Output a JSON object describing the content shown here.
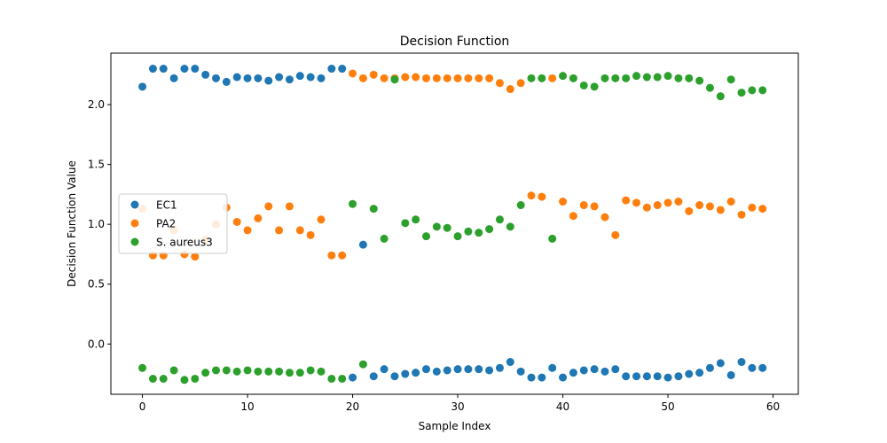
{
  "chart_data": {
    "type": "scatter",
    "title": "Decision Function",
    "xlabel": "Sample Index",
    "ylabel": "Decision Function Value",
    "xlim": [
      -3,
      62.4
    ],
    "ylim": [
      -0.42,
      2.43
    ],
    "xticks": [
      0,
      10,
      20,
      30,
      40,
      50,
      60
    ],
    "yticks": [
      0.0,
      0.5,
      1.0,
      1.5,
      2.0
    ],
    "xtick_labels": [
      "0",
      "10",
      "20",
      "30",
      "40",
      "50",
      "60"
    ],
    "ytick_labels": [
      "0.0",
      "0.5",
      "1.0",
      "1.5",
      "2.0"
    ],
    "grid": false,
    "legend_position": "center-left",
    "x": [
      0,
      1,
      2,
      3,
      4,
      5,
      6,
      7,
      8,
      9,
      10,
      11,
      12,
      13,
      14,
      15,
      16,
      17,
      18,
      19,
      20,
      21,
      22,
      23,
      24,
      25,
      26,
      27,
      28,
      29,
      30,
      31,
      32,
      33,
      34,
      35,
      36,
      37,
      38,
      39,
      40,
      41,
      42,
      43,
      44,
      45,
      46,
      47,
      48,
      49,
      50,
      51,
      52,
      53,
      54,
      55,
      56,
      57,
      58,
      59
    ],
    "series": [
      {
        "name": "EC1",
        "color": "#1f77b4",
        "values": [
          2.15,
          2.3,
          2.3,
          2.22,
          2.3,
          2.3,
          2.25,
          2.22,
          2.19,
          2.23,
          2.22,
          2.22,
          2.2,
          2.23,
          2.21,
          2.24,
          2.23,
          2.22,
          2.3,
          2.3,
          -0.28,
          0.83,
          -0.27,
          -0.21,
          -0.27,
          -0.25,
          -0.24,
          -0.21,
          -0.23,
          -0.22,
          -0.21,
          -0.21,
          -0.21,
          -0.22,
          -0.2,
          -0.15,
          -0.23,
          -0.28,
          -0.28,
          -0.2,
          -0.28,
          -0.24,
          -0.22,
          -0.21,
          -0.23,
          -0.21,
          -0.27,
          -0.27,
          -0.27,
          -0.27,
          -0.28,
          -0.27,
          -0.25,
          -0.24,
          -0.2,
          -0.16,
          -0.26,
          -0.15,
          -0.2,
          -0.2
        ]
      },
      {
        "name": "PA2",
        "color": "#ff7f0e",
        "values": [
          1.13,
          0.74,
          0.74,
          0.95,
          0.75,
          0.73,
          0.87,
          1.0,
          1.14,
          1.02,
          0.95,
          1.05,
          1.15,
          0.95,
          1.15,
          0.95,
          0.91,
          1.04,
          0.74,
          0.74,
          2.26,
          2.22,
          2.25,
          2.22,
          2.22,
          2.23,
          2.23,
          2.22,
          2.22,
          2.22,
          2.22,
          2.22,
          2.22,
          2.22,
          2.18,
          2.13,
          2.18,
          1.24,
          1.23,
          2.22,
          1.19,
          1.07,
          1.16,
          1.15,
          1.06,
          0.91,
          1.2,
          1.18,
          1.14,
          1.16,
          1.18,
          1.19,
          1.11,
          1.16,
          1.15,
          1.12,
          1.19,
          1.08,
          1.14,
          1.13
        ]
      },
      {
        "name": "S. aureus3",
        "color": "#2ca02c",
        "values": [
          -0.2,
          -0.29,
          -0.29,
          -0.22,
          -0.3,
          -0.29,
          -0.24,
          -0.22,
          -0.22,
          -0.23,
          -0.22,
          -0.23,
          -0.23,
          -0.23,
          -0.24,
          -0.24,
          -0.22,
          -0.23,
          -0.29,
          -0.29,
          1.17,
          -0.17,
          1.13,
          0.88,
          2.21,
          1.01,
          1.04,
          0.9,
          0.98,
          0.97,
          0.9,
          0.94,
          0.93,
          0.96,
          1.04,
          0.98,
          1.16,
          2.22,
          2.22,
          0.88,
          2.24,
          2.22,
          2.16,
          2.15,
          2.22,
          2.22,
          2.22,
          2.24,
          2.23,
          2.23,
          2.24,
          2.22,
          2.22,
          2.2,
          2.14,
          2.07,
          2.21,
          2.1,
          2.12,
          2.12
        ]
      }
    ]
  }
}
